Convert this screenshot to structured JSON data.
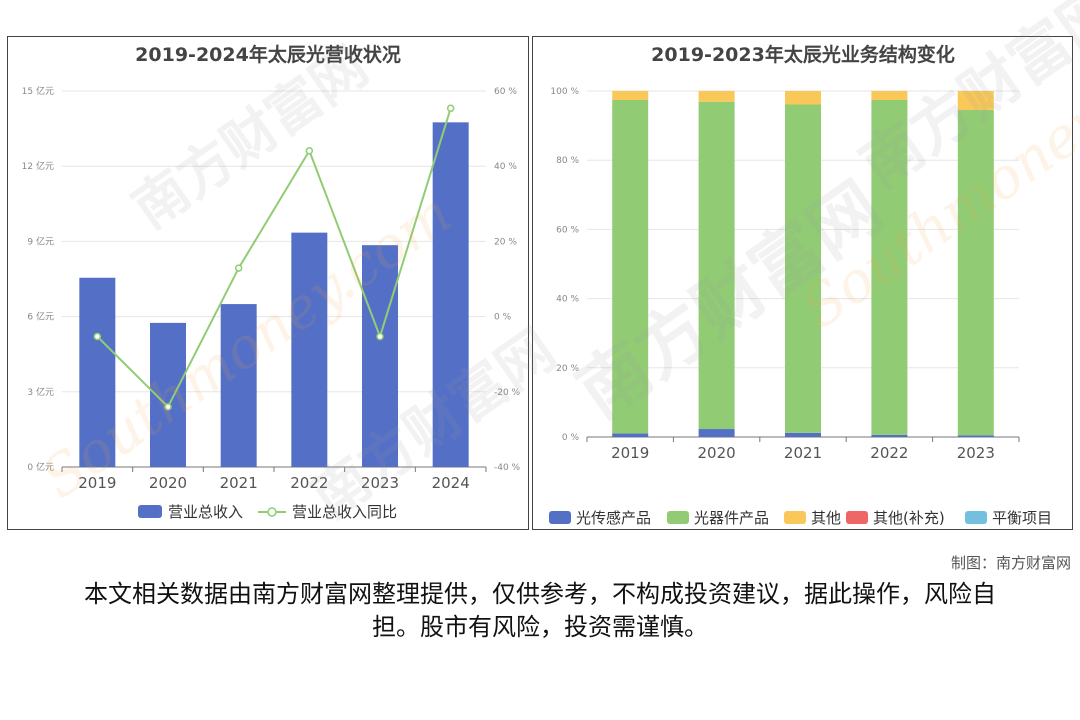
{
  "chart_data": [
    {
      "type": "bar",
      "title": "2019-2024年太辰光营收状况",
      "categories": [
        "2019",
        "2020",
        "2021",
        "2022",
        "2023",
        "2024"
      ],
      "series": [
        {
          "name": "营业总收入",
          "type": "bar",
          "axis": "left",
          "color": "#5470c6",
          "values": [
            7.55,
            5.75,
            6.5,
            9.35,
            8.85,
            13.75
          ]
        },
        {
          "name": "营业总收入同比",
          "type": "line",
          "axis": "right",
          "color": "#91cc75",
          "values": [
            -5.3,
            -24,
            12.9,
            44.1,
            -5.3,
            55.4
          ]
        }
      ],
      "y_left": {
        "min": 0,
        "max": 15,
        "ticks": [
          0,
          3,
          6,
          9,
          12,
          15
        ],
        "tick_labels": [
          "0 亿元",
          "3 亿元",
          "6 亿元",
          "9 亿元",
          "12 亿元",
          "15 亿元"
        ]
      },
      "y_right": {
        "min": -40,
        "max": 60,
        "ticks": [
          -40,
          -20,
          0,
          20,
          40,
          60
        ],
        "tick_labels": [
          "-40 %",
          "-20 %",
          "0 %",
          "20 %",
          "40 %",
          "60 %"
        ]
      },
      "grid": true,
      "legend": "bottom"
    },
    {
      "type": "bar",
      "stacked": true,
      "title": "2019-2023年太辰光业务结构变化",
      "categories": [
        "2019",
        "2020",
        "2021",
        "2022",
        "2023"
      ],
      "series": [
        {
          "name": "光传感产品",
          "color": "#5470c6",
          "values": [
            1.0,
            2.3,
            1.2,
            0.6,
            0.5
          ]
        },
        {
          "name": "光器件产品",
          "color": "#91cc75",
          "values": [
            96.4,
            94.6,
            94.9,
            96.8,
            94.0
          ]
        },
        {
          "name": "其他",
          "color": "#fac858",
          "values": [
            2.6,
            3.1,
            3.9,
            2.6,
            5.5
          ]
        },
        {
          "name": "其他(补充)",
          "color": "#ee6666",
          "values": [
            0,
            0,
            0,
            0,
            0
          ]
        },
        {
          "name": "平衡项目",
          "color": "#73c0de",
          "values": [
            0,
            0,
            0,
            0,
            0
          ]
        }
      ],
      "y": {
        "min": 0,
        "max": 100,
        "ticks": [
          0,
          20,
          40,
          60,
          80,
          100
        ],
        "tick_labels": [
          "0 %",
          "20 %",
          "40 %",
          "60 %",
          "80 %",
          "100 %"
        ]
      },
      "grid": true,
      "legend": "bottom"
    }
  ],
  "watermark": {
    "text_cn": "南方财富网",
    "text_en": "Southmoney.com"
  },
  "credit": "制图：南方财富网",
  "disclaimer": "本文相关数据由南方财富网整理提供，仅供参考，不构成投资建议，据此操作，风险自担。股市有风险，投资需谨慎。"
}
